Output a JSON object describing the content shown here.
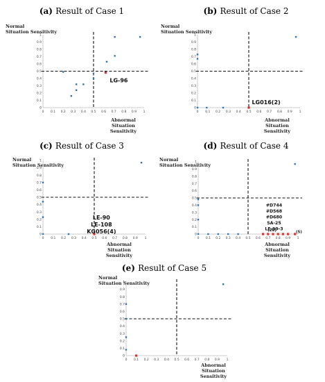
{
  "chart_data": [
    {
      "type": "scatter",
      "panel": "(a)",
      "title": "Result of Case 1",
      "xlabel": "Abnormal Situation Sensitivity",
      "ylabel": "Normal Situation Sensitivity",
      "xlim": [
        0,
        1
      ],
      "ylim": [
        0,
        1
      ],
      "x_ticks": [
        "0",
        "0.1",
        "0.2",
        "0.3",
        "0.4",
        "0.5",
        "0.6",
        "0.7",
        "0.8",
        "0.9",
        "1"
      ],
      "y_ticks": [
        "0",
        "0.1",
        "0.2",
        "0.3",
        "0.4",
        "0.5",
        "0.6",
        "0.7",
        "0.8",
        "0.9",
        "1"
      ],
      "thresholds": {
        "x": 0.5,
        "y": 0.5
      },
      "series": [
        {
          "color": "#2E75B6",
          "points": [
            [
              0.2,
              0.49
            ],
            [
              0.28,
              0.16
            ],
            [
              0.33,
              0.24
            ],
            [
              0.33,
              0.32
            ],
            [
              0.4,
              0.32
            ],
            [
              0.5,
              0.4
            ],
            [
              0.5,
              0.47
            ],
            [
              0.63,
              0.63
            ],
            [
              0.71,
              0.71
            ],
            [
              0.71,
              0.97
            ],
            [
              0.96,
              0.97
            ]
          ]
        },
        {
          "color": "#E03030",
          "points": [
            [
              0.62,
              0.48
            ]
          ]
        }
      ],
      "annotations": [
        {
          "text": "LG-96",
          "x": 0.66,
          "y": 0.35
        }
      ]
    },
    {
      "type": "scatter",
      "panel": "(b)",
      "title": "Result of Case 2",
      "xlabel": "Abnormal Situation Sensitivity",
      "ylabel": "Normal Situation Sensitivity",
      "xlim": [
        0,
        1
      ],
      "ylim": [
        0,
        1
      ],
      "x_ticks": [
        "0",
        "0.1",
        "0.2",
        "0.3",
        "0.4",
        "0.5",
        "0.6",
        "0.7",
        "0.8",
        "0.9",
        "1"
      ],
      "y_ticks": [
        "0",
        "0.1",
        "0.2",
        "0.3",
        "0.4",
        "0.5",
        "0.6",
        "0.7",
        "0.8",
        "0.9",
        "1"
      ],
      "thresholds": {
        "x": 0.5,
        "y": 0.5
      },
      "series": [
        {
          "color": "#2E75B6",
          "points": [
            [
              0,
              0
            ],
            [
              0,
              0.67
            ],
            [
              0,
              0.73
            ],
            [
              0.09,
              0
            ],
            [
              0.25,
              0
            ],
            [
              0.96,
              0.97
            ]
          ]
        },
        {
          "color": "#E03030",
          "points": [
            [
              0.5,
              0
            ]
          ]
        }
      ],
      "annotations": [
        {
          "text": "LG016(2)",
          "x": 0.53,
          "y": 0.05
        }
      ]
    },
    {
      "type": "scatter",
      "panel": "(c)",
      "title": "Result of Case 3",
      "xlabel": "Abnormal Situation Sensitivity",
      "ylabel": "Normal Situation Sensitivity",
      "xlim": [
        0,
        1
      ],
      "ylim": [
        0,
        1
      ],
      "x_ticks": [
        "0",
        "0.1",
        "0.2",
        "0.3",
        "0.4",
        "0.5",
        "0.6",
        "0.7",
        "0.8",
        "0.9",
        "1"
      ],
      "y_ticks": [
        "0",
        "0.1",
        "0.2",
        "0.3",
        "0.4",
        "0.5",
        "0.6",
        "0.7",
        "0.8",
        "0.9",
        "1"
      ],
      "thresholds": {
        "x": 0.5,
        "y": 0.5
      },
      "series": [
        {
          "color": "#2E75B6",
          "points": [
            [
              0,
              0
            ],
            [
              0,
              0.23
            ],
            [
              0,
              0.44
            ],
            [
              0,
              0.7
            ],
            [
              0.25,
              0
            ],
            [
              0.96,
              0.97
            ]
          ]
        },
        {
          "color": "#E03030",
          "points": [
            [
              0.5,
              0
            ]
          ]
        }
      ],
      "annotations": [
        {
          "lines": [
            "LE-90",
            "LE-108",
            "KG056(4)"
          ],
          "x": 0.57,
          "y": 0.2
        }
      ]
    },
    {
      "type": "scatter",
      "panel": "(d)",
      "title": "Result of Case 4",
      "xlabel": "Abnormal Situation Sensitivity",
      "ylabel": "Normal Situation Sensitivity",
      "xlim": [
        0,
        1
      ],
      "ylim": [
        0,
        1
      ],
      "x_ticks": [
        "0",
        "0.1",
        "0.2",
        "0.3",
        "0.4",
        "0.5",
        "0.6",
        "0.7",
        "0.8",
        "0.9",
        "1"
      ],
      "y_ticks": [
        "0",
        "0.1",
        "0.2",
        "0.3",
        "0.4",
        "0.5",
        "0.6",
        "0.7",
        "0.8",
        "0.9",
        "1"
      ],
      "thresholds": {
        "x": 0.5,
        "y": 0.5
      },
      "series": [
        {
          "color": "#2E75B6",
          "points": [
            [
              0,
              0
            ],
            [
              0,
              0.2
            ],
            [
              0,
              0.4
            ],
            [
              0,
              0.48
            ],
            [
              0.1,
              0
            ],
            [
              0.2,
              0
            ],
            [
              0.3,
              0
            ],
            [
              0.4,
              0
            ],
            [
              0.97,
              0.97
            ]
          ]
        },
        {
          "color": "#E03030",
          "points": [
            [
              0.65,
              0
            ],
            [
              0.7,
              0
            ],
            [
              0.75,
              0
            ],
            [
              0.8,
              0
            ],
            [
              0.85,
              0
            ],
            [
              0.9,
              0
            ],
            [
              0.97,
              0
            ]
          ]
        }
      ],
      "annotations": [
        {
          "lines": [
            "#D744",
            "#D568",
            "#D680",
            "SA-25",
            "LE-99-3"
          ],
          "x": 0.76,
          "y": 0.38
        },
        {
          "text": "(20)",
          "x": 0.74,
          "y": 0.04
        },
        {
          "text": "(5)",
          "x": 1.01,
          "y": 0.015
        }
      ]
    },
    {
      "type": "scatter",
      "panel": "(e)",
      "title": "Result of Case 5",
      "xlabel": "Abnormal Situation Sensitivity",
      "ylabel": "Normal Situation Sensitivity",
      "xlim": [
        0,
        1
      ],
      "ylim": [
        0,
        1
      ],
      "x_ticks": [
        "0",
        "0.1",
        "0.2",
        "0.3",
        "0.4",
        "0.5",
        "0.6",
        "0.7",
        "0.8",
        "0.9",
        "1"
      ],
      "y_ticks": [
        "0",
        "0.1",
        "0.2",
        "0.3",
        "0.4",
        "0.5",
        "0.6",
        "0.7",
        "0.8",
        "0.9",
        "1"
      ],
      "thresholds": {
        "x": 0.5,
        "y": 0.5
      },
      "series": [
        {
          "color": "#2E75B6",
          "points": [
            [
              0,
              0.08
            ],
            [
              0,
              0.25
            ],
            [
              0,
              0.5
            ],
            [
              0,
              0.7
            ],
            [
              0.96,
              0.97
            ]
          ]
        },
        {
          "color": "#E03030",
          "points": [
            [
              0.1,
              0
            ]
          ]
        }
      ],
      "annotations": []
    }
  ]
}
